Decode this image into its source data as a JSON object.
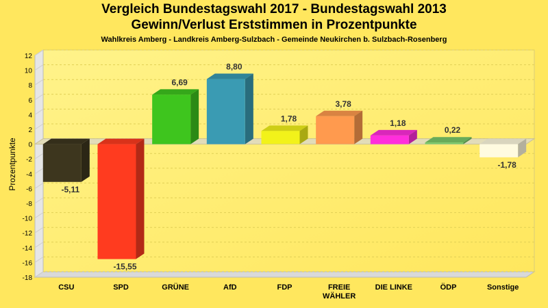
{
  "chart_data": {
    "type": "bar",
    "title": "Vergleich Bundestagswahl 2017 - Bundestagswahl 2013",
    "subtitle": "Gewinn/Verlust Erststimmen in Prozentpunkte",
    "caption": "Wahlkreis Amberg - Landkreis Amberg-Sulzbach - Gemeinde Neukirchen b. Sulzbach-Rosenberg",
    "ylabel": "Prozentpunkte",
    "xlabel": "",
    "ylim": [
      -18,
      12
    ],
    "yticks": [
      12,
      10,
      8,
      6,
      4,
      2,
      0,
      -2,
      -4,
      -6,
      -8,
      -10,
      -12,
      -14,
      -16,
      -18
    ],
    "grid": true,
    "categories": [
      {
        "lines": [
          "CSU"
        ]
      },
      {
        "lines": [
          "SPD"
        ]
      },
      {
        "lines": [
          "GRÜNE"
        ]
      },
      {
        "lines": [
          "AfD"
        ]
      },
      {
        "lines": [
          "FDP"
        ]
      },
      {
        "lines": [
          "FREIE",
          "WÄHLER"
        ]
      },
      {
        "lines": [
          "DIE LINKE"
        ]
      },
      {
        "lines": [
          "ÖDP"
        ]
      },
      {
        "lines": [
          "Sonstige"
        ]
      }
    ],
    "values": [
      -5.11,
      -15.55,
      6.69,
      8.8,
      1.78,
      3.78,
      1.18,
      0.22,
      -1.78
    ],
    "labels": [
      "-5,11",
      "-15,55",
      "6,69",
      "8,80",
      "1,78",
      "3,78",
      "1,18",
      "0,22",
      "-1,78"
    ],
    "colors": [
      "#3d361e",
      "#ff3b1f",
      "#3ec51e",
      "#3a9bb3",
      "#f2f21a",
      "#ff9a4e",
      "#ff2edc",
      "#7ac96a",
      "#fffbe0"
    ]
  }
}
